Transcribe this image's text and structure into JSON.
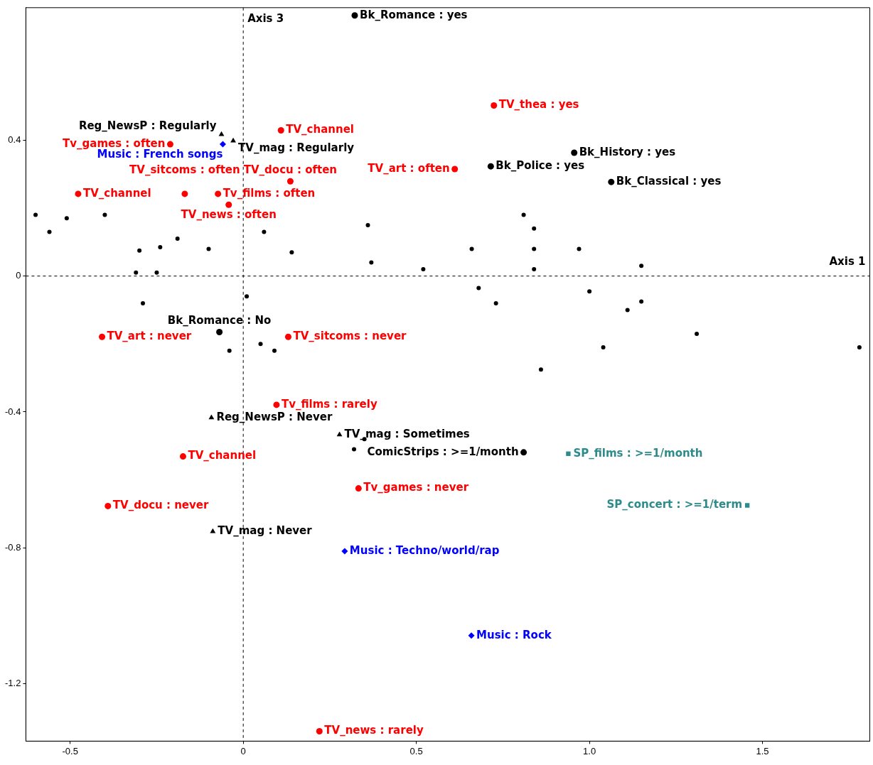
{
  "chart_data": {
    "type": "scatter",
    "xlim": [
      -0.628,
      1.81
    ],
    "ylim": [
      -1.369,
      0.79
    ],
    "xticks": [
      -0.5,
      0,
      0.5,
      {
        "value": 1,
        "label": "1.0"
      },
      1.5
    ],
    "yticks": [
      0.4,
      0,
      -0.4,
      -0.8,
      -1.2
    ],
    "grid": false,
    "legend": false,
    "series": [
      {
        "color": "#ff0000",
        "marker": "circle",
        "x": [
          -0.211,
          0.109,
          0.724,
          -0.477,
          -0.073,
          -0.169,
          -0.042,
          0.136,
          0.611,
          -0.408,
          0.13,
          0.096,
          -0.174,
          -0.391,
          0.333,
          0.22
        ],
        "values": [
          0.388,
          0.429,
          0.502,
          0.242,
          0.242,
          0.242,
          0.21,
          0.279,
          0.315,
          -0.179,
          -0.179,
          -0.379,
          -0.531,
          -0.677,
          -0.625,
          -1.34
        ]
      },
      {
        "color": "#000000",
        "marker": "circle",
        "x": [
          0.322,
          0.956,
          0.715,
          1.063,
          -0.069,
          0.81
        ],
        "values": [
          0.767,
          0.363,
          0.323,
          0.277,
          -0.165,
          -0.519
        ]
      },
      {
        "color": "#000000",
        "marker": "triangle",
        "x": [
          -0.063,
          -0.029,
          -0.092,
          0.278,
          -0.088
        ],
        "values": [
          0.417,
          0.398,
          -0.417,
          -0.467,
          -0.752
        ]
      },
      {
        "color": "#0000ff",
        "marker": "diamond",
        "x": [
          -0.059,
          0.293,
          0.659
        ],
        "values": [
          0.388,
          -0.81,
          -1.058
        ]
      },
      {
        "color": "#2e8b8b",
        "marker": "square",
        "x": [
          0.939,
          1.456
        ],
        "values": [
          -0.523,
          -0.675
        ]
      },
      {
        "color": "#000000",
        "marker": "circle",
        "x": [
          -0.6,
          -0.56,
          -0.51,
          -0.4,
          -0.3,
          -0.24,
          -0.31,
          -0.25,
          -0.19,
          -0.1,
          0.06,
          0.14,
          0.36,
          0.37,
          0.52,
          0.66,
          0.81,
          0.84,
          0.84,
          0.84,
          0.97,
          1.15,
          0.68,
          0.73,
          1.0,
          1.11,
          1.15,
          1.31,
          1.04,
          1.78,
          0.86,
          0.05,
          0.09,
          -0.04,
          0.01,
          -0.29,
          0.35,
          0.32
        ],
        "values": [
          0.18,
          0.13,
          0.17,
          0.18,
          0.075,
          0.085,
          0.01,
          0.01,
          0.11,
          0.08,
          0.13,
          0.07,
          0.15,
          0.04,
          0.02,
          0.08,
          0.18,
          0.14,
          0.08,
          0.02,
          0.08,
          0.03,
          -0.035,
          -0.08,
          -0.045,
          -0.1,
          -0.075,
          -0.17,
          -0.21,
          -0.21,
          -0.275,
          -0.2,
          -0.22,
          -0.22,
          -0.06,
          -0.08,
          -0.48,
          -0.51
        ]
      }
    ],
    "ref_lines": [
      {
        "axis": "x",
        "value": 0,
        "label": "Axis 3",
        "line_style": "dashed"
      },
      {
        "axis": "y",
        "value": 0,
        "label": "Axis 1",
        "line_style": "dashed"
      }
    ],
    "annotations": [
      {
        "text": "Tv_games : often",
        "x": -0.211,
        "y": 0.388
      },
      {
        "text": "TV_channel",
        "x": 0.109,
        "y": 0.429
      },
      {
        "text": "TV_thea : yes",
        "x": 0.724,
        "y": 0.502
      },
      {
        "text": "TV_channel",
        "x": -0.477,
        "y": 0.242
      },
      {
        "text": "Tv_films : often",
        "x": -0.073,
        "y": 0.242
      },
      {
        "text": "TV_sitcoms : often",
        "x": -0.169,
        "y": 0.242
      },
      {
        "text": "TV_news : often",
        "x": -0.042,
        "y": 0.21
      },
      {
        "text": "TV_docu : often",
        "x": 0.136,
        "y": 0.279
      },
      {
        "text": "TV_art : often",
        "x": 0.611,
        "y": 0.315
      },
      {
        "text": "TV_art : never",
        "x": -0.408,
        "y": -0.179
      },
      {
        "text": "TV_sitcoms : never",
        "x": 0.13,
        "y": -0.179
      },
      {
        "text": "Tv_films : rarely",
        "x": 0.096,
        "y": -0.379
      },
      {
        "text": "TV_channel",
        "x": -0.174,
        "y": -0.531
      },
      {
        "text": "TV_docu : never",
        "x": -0.391,
        "y": -0.677
      },
      {
        "text": "Tv_games : never",
        "x": 0.333,
        "y": -0.625
      },
      {
        "text": "TV_news : rarely",
        "x": 0.22,
        "y": -1.34
      },
      {
        "text": "Bk_Romance : yes",
        "x": 0.322,
        "y": 0.767
      },
      {
        "text": "Bk_History : yes",
        "x": 0.956,
        "y": 0.363
      },
      {
        "text": "Bk_Police : yes",
        "x": 0.715,
        "y": 0.323
      },
      {
        "text": "Bk_Classical : yes",
        "x": 1.063,
        "y": 0.277
      },
      {
        "text": "Bk_Romance : No",
        "x": -0.069,
        "y": -0.165
      },
      {
        "text": "ComicStrips : >=1/month",
        "x": 0.81,
        "y": -0.519
      },
      {
        "text": "Reg_NewsP : Regularly",
        "x": -0.063,
        "y": 0.417
      },
      {
        "text": "TV_mag : Regularly",
        "x": -0.029,
        "y": 0.398
      },
      {
        "text": "Reg_NewsP : Never",
        "x": -0.092,
        "y": -0.417
      },
      {
        "text": "TV_mag : Sometimes",
        "x": 0.278,
        "y": -0.467
      },
      {
        "text": "TV_mag : Never",
        "x": -0.088,
        "y": -0.752
      },
      {
        "text": "Music : French songs",
        "x": -0.059,
        "y": 0.388
      },
      {
        "text": "Music : Techno/world/rap",
        "x": 0.293,
        "y": -0.81
      },
      {
        "text": "Music : Rock",
        "x": 0.659,
        "y": -1.058
      },
      {
        "text": "SP_films : >=1/month",
        "x": 0.939,
        "y": -0.523
      },
      {
        "text": "SP_concert : >=1/term",
        "x": 1.456,
        "y": -0.675
      }
    ]
  }
}
